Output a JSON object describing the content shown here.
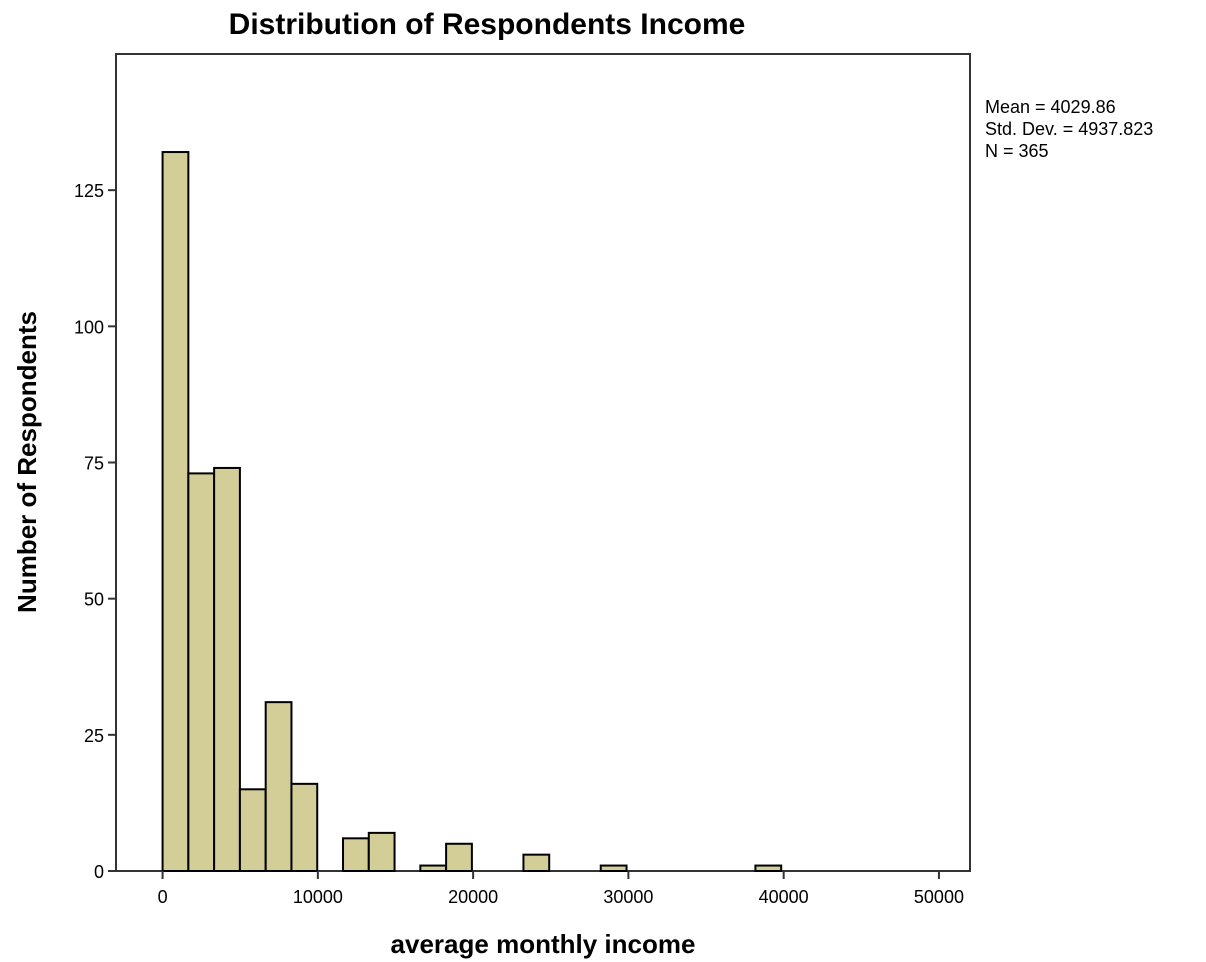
{
  "chart_data": {
    "type": "bar",
    "title": "Distribution of Respondents Income",
    "xlabel": "average monthly income",
    "ylabel": "Number of Respondents",
    "xlim": [
      -3000,
      52000
    ],
    "ylim": [
      0,
      150
    ],
    "x_ticks": [
      0,
      10000,
      20000,
      30000,
      40000,
      50000
    ],
    "x_tick_labels": [
      "0",
      "10000",
      "20000",
      "30000",
      "40000",
      "50000"
    ],
    "y_ticks": [
      0,
      25,
      50,
      75,
      100,
      125
    ],
    "y_tick_labels": [
      "0",
      "25",
      "50",
      "75",
      "100",
      "125"
    ],
    "bin_width": 1660,
    "bins": [
      {
        "x0": 0,
        "count": 132
      },
      {
        "x0": 1660,
        "count": 73
      },
      {
        "x0": 3320,
        "count": 74
      },
      {
        "x0": 4980,
        "count": 15
      },
      {
        "x0": 6640,
        "count": 31
      },
      {
        "x0": 8300,
        "count": 16
      },
      {
        "x0": 9960,
        "count": 0
      },
      {
        "x0": 11620,
        "count": 6
      },
      {
        "x0": 13280,
        "count": 7
      },
      {
        "x0": 14940,
        "count": 0
      },
      {
        "x0": 16600,
        "count": 1
      },
      {
        "x0": 18260,
        "count": 5
      },
      {
        "x0": 19920,
        "count": 0
      },
      {
        "x0": 21580,
        "count": 0
      },
      {
        "x0": 23240,
        "count": 3
      },
      {
        "x0": 24900,
        "count": 0
      },
      {
        "x0": 26560,
        "count": 0
      },
      {
        "x0": 28220,
        "count": 1
      },
      {
        "x0": 29880,
        "count": 0
      },
      {
        "x0": 31540,
        "count": 0
      },
      {
        "x0": 33200,
        "count": 0
      },
      {
        "x0": 34860,
        "count": 0
      },
      {
        "x0": 36520,
        "count": 0
      },
      {
        "x0": 38180,
        "count": 1
      }
    ],
    "stats": {
      "mean": "Mean = 4029.86",
      "std_dev": "Std. Dev. = 4937.823",
      "n": "N = 365"
    },
    "bar_color": "#d3ce98",
    "grid": false,
    "legend": "none"
  }
}
